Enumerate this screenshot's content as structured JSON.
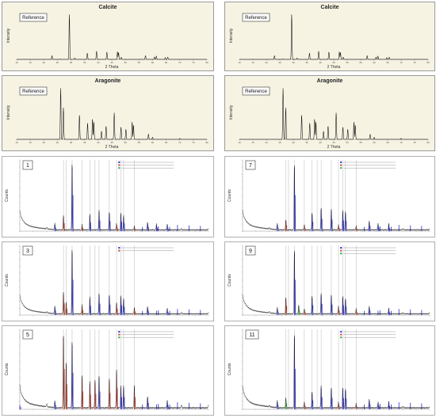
{
  "figure": {
    "calcite_title": "Calcite",
    "aragonite_title": "Aragonite",
    "reference_label": "Reference",
    "intensity_label": "Intensity",
    "two_theta_label": "2 Theta",
    "counts_label": "Counts"
  },
  "colors": {
    "panel_background": "#f6f3e3",
    "sample_background": "#ffffff",
    "reference_trace": "#111111",
    "measured_trace": "#111111",
    "calcite_peaks": "#2b2bd6",
    "aragonite_peaks": "#c0392b",
    "third_phase_peaks": "#27a12e",
    "marker_lines": "#9a9a9a"
  },
  "chart_data": [
    {
      "type": "line",
      "panel": "calcite-reference-left",
      "title": "Calcite",
      "xlabel": "2 Theta",
      "ylabel": "Intensity",
      "legend": "Reference",
      "x_ticks": [
        "10",
        "15",
        "20",
        "25",
        "30",
        "35",
        "40",
        "45",
        "50",
        "55",
        "60",
        "65",
        "70",
        "75",
        "80"
      ],
      "x": [
        10,
        20,
        23.0,
        26.0,
        29.4,
        31.4,
        36.0,
        39.4,
        43.2,
        47.1,
        47.5,
        48.5,
        57.4,
        60.7,
        61.4,
        64.7,
        65.6,
        70,
        80
      ],
      "y": [
        0,
        0,
        8,
        1,
        100,
        3,
        14,
        18,
        16,
        17,
        15,
        5,
        8,
        5,
        7,
        4,
        5,
        0,
        0
      ]
    },
    {
      "type": "line",
      "panel": "calcite-reference-right",
      "title": "Calcite",
      "xlabel": "2 Theta",
      "ylabel": "Intensity",
      "legend": "Reference",
      "x_ticks": [
        "10",
        "15",
        "20",
        "25",
        "30",
        "35",
        "40",
        "45",
        "50",
        "55",
        "60",
        "65",
        "70",
        "75",
        "80"
      ],
      "x": [
        10,
        20,
        23.0,
        26.0,
        29.4,
        31.4,
        36.0,
        39.4,
        43.2,
        47.1,
        47.5,
        48.5,
        57.4,
        60.7,
        61.4,
        64.7,
        65.6,
        70,
        80
      ],
      "y": [
        0,
        0,
        8,
        1,
        100,
        3,
        14,
        18,
        16,
        17,
        15,
        5,
        8,
        5,
        7,
        4,
        5,
        0,
        0
      ]
    },
    {
      "type": "line",
      "panel": "aragonite-reference-left",
      "title": "Aragonite",
      "xlabel": "2 Theta",
      "ylabel": "Intensity",
      "legend": "Reference",
      "x_ticks": [
        "10",
        "15",
        "20",
        "25",
        "30",
        "35",
        "40",
        "45",
        "50",
        "55",
        "60",
        "65",
        "70",
        "75",
        "80"
      ],
      "x": [
        10,
        20,
        26.2,
        27.2,
        33.1,
        36.1,
        37.9,
        38.4,
        41.2,
        42.9,
        45.9,
        48.4,
        50.2,
        52.5,
        53.0,
        58.5,
        60,
        70,
        80
      ],
      "y": [
        0,
        0,
        100,
        62,
        48,
        32,
        40,
        34,
        16,
        26,
        52,
        24,
        20,
        34,
        28,
        10,
        4,
        2,
        0
      ]
    },
    {
      "type": "line",
      "panel": "aragonite-reference-right",
      "title": "Aragonite",
      "xlabel": "2 Theta",
      "ylabel": "Intensity",
      "legend": "Reference",
      "x_ticks": [
        "10",
        "15",
        "20",
        "25",
        "30",
        "35",
        "40",
        "45",
        "50",
        "55",
        "60",
        "65",
        "70",
        "75",
        "80"
      ],
      "x": [
        10,
        20,
        26.2,
        27.2,
        33.1,
        36.1,
        37.9,
        38.4,
        41.2,
        42.9,
        45.9,
        48.4,
        50.2,
        52.5,
        53.0,
        58.5,
        60,
        70,
        80
      ],
      "y": [
        0,
        0,
        100,
        62,
        48,
        32,
        40,
        34,
        16,
        26,
        52,
        24,
        20,
        34,
        28,
        10,
        4,
        2,
        0
      ]
    },
    {
      "type": "line",
      "panel": "sample-1",
      "label": "1",
      "ylabel": "Counts",
      "x": [
        10,
        20,
        23.0,
        26.2,
        29.4,
        33.1,
        36.0,
        39.4,
        43.2,
        45.9,
        47.5,
        48.5,
        52.5,
        57.4,
        60.7,
        64.7,
        70,
        80
      ],
      "y": [
        4,
        2,
        10,
        22,
        100,
        8,
        24,
        30,
        28,
        10,
        26,
        22,
        6,
        12,
        9,
        8,
        2,
        2
      ],
      "phases": [
        "calcite",
        "aragonite",
        "third"
      ]
    },
    {
      "type": "line",
      "panel": "sample-3",
      "label": "3",
      "ylabel": "Counts",
      "x": [
        10,
        20,
        23.0,
        26.2,
        27.2,
        29.4,
        33.1,
        36.0,
        39.4,
        43.2,
        45.9,
        47.5,
        48.5,
        52.5,
        57.4,
        64.7,
        70,
        80
      ],
      "y": [
        4,
        2,
        12,
        34,
        18,
        100,
        14,
        26,
        32,
        30,
        18,
        28,
        24,
        10,
        12,
        8,
        2,
        2
      ],
      "phases": [
        "calcite",
        "aragonite"
      ]
    },
    {
      "type": "line",
      "panel": "sample-5",
      "label": "5",
      "ylabel": "Counts",
      "x": [
        10,
        20,
        23.0,
        26.2,
        27.2,
        29.4,
        33.1,
        36.0,
        37.9,
        39.4,
        43.2,
        45.9,
        47.5,
        48.5,
        52.5,
        57.4,
        64.7,
        70,
        80
      ],
      "y": [
        6,
        4,
        10,
        100,
        62,
        90,
        44,
        36,
        38,
        44,
        40,
        52,
        30,
        30,
        30,
        16,
        10,
        4,
        4
      ],
      "phases": [
        "calcite",
        "aragonite",
        "third"
      ]
    },
    {
      "type": "line",
      "panel": "sample-7",
      "label": "7",
      "ylabel": "Counts",
      "x": [
        10,
        20,
        23.0,
        26.2,
        29.4,
        33.1,
        36.0,
        39.4,
        43.2,
        45.9,
        47.5,
        48.5,
        52.5,
        57.4,
        60.7,
        64.7,
        70,
        80
      ],
      "y": [
        4,
        2,
        10,
        16,
        100,
        8,
        26,
        34,
        32,
        8,
        30,
        28,
        6,
        14,
        10,
        9,
        2,
        2
      ],
      "phases": [
        "calcite",
        "aragonite",
        "third"
      ]
    },
    {
      "type": "line",
      "panel": "sample-9",
      "label": "9",
      "ylabel": "Counts",
      "x": [
        10,
        20,
        23.0,
        26.2,
        29.4,
        31.0,
        33.1,
        36.0,
        39.4,
        43.2,
        45.9,
        47.5,
        48.5,
        52.5,
        57.4,
        64.7,
        70,
        80
      ],
      "y": [
        4,
        2,
        10,
        26,
        100,
        14,
        8,
        28,
        32,
        30,
        12,
        28,
        24,
        8,
        12,
        8,
        2,
        2
      ],
      "phases": [
        "calcite",
        "aragonite",
        "third"
      ]
    },
    {
      "type": "line",
      "panel": "sample-11",
      "label": "11",
      "ylabel": "Counts",
      "x": [
        10,
        20,
        23.0,
        26.2,
        29.4,
        33.1,
        36.0,
        39.4,
        43.2,
        45.9,
        47.5,
        48.5,
        52.5,
        57.4,
        60.7,
        64.7,
        70,
        80
      ],
      "y": [
        4,
        2,
        10,
        14,
        100,
        8,
        22,
        30,
        28,
        8,
        28,
        26,
        6,
        12,
        8,
        8,
        2,
        2
      ],
      "phases": [
        "calcite",
        "aragonite",
        "third"
      ]
    }
  ]
}
